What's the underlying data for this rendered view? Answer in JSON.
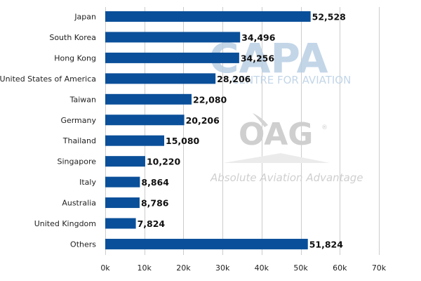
{
  "chart_data": {
    "type": "bar",
    "orientation": "horizontal",
    "categories": [
      "Japan",
      "South Korea",
      "Hong Kong",
      "United States of America",
      "Taiwan",
      "Germany",
      "Thailand",
      "Singapore",
      "Italy",
      "Australia",
      "United Kingdom",
      "Others"
    ],
    "values": [
      52528,
      34496,
      34256,
      28206,
      22080,
      20206,
      15080,
      10220,
      8864,
      8786,
      7824,
      51824
    ],
    "value_labels": [
      "52,528",
      "34,496",
      "34,256",
      "28,206",
      "22,080",
      "20,206",
      "15,080",
      "10,220",
      "8,864",
      "8,786",
      "7,824",
      "51,824"
    ],
    "x_ticks": [
      "0k",
      "10k",
      "20k",
      "30k",
      "40k",
      "50k",
      "60k",
      "70k"
    ],
    "x_tick_values": [
      0,
      10000,
      20000,
      30000,
      40000,
      50000,
      60000,
      70000
    ],
    "xlim": [
      0,
      70000
    ],
    "title": "",
    "xlabel": "",
    "ylabel": "",
    "grid": "vertical",
    "bar_color": "#0a4f99",
    "grid_color": "#cccccc"
  },
  "watermarks": {
    "capa": {
      "logo": "CAPA",
      "tagline": "CENTRE FOR AVIATION",
      "color": "#b9cfe4"
    },
    "oag": {
      "logo": "OAG",
      "tagline": "Absolute Aviation Advantage",
      "color": "#cfcfcf"
    }
  }
}
